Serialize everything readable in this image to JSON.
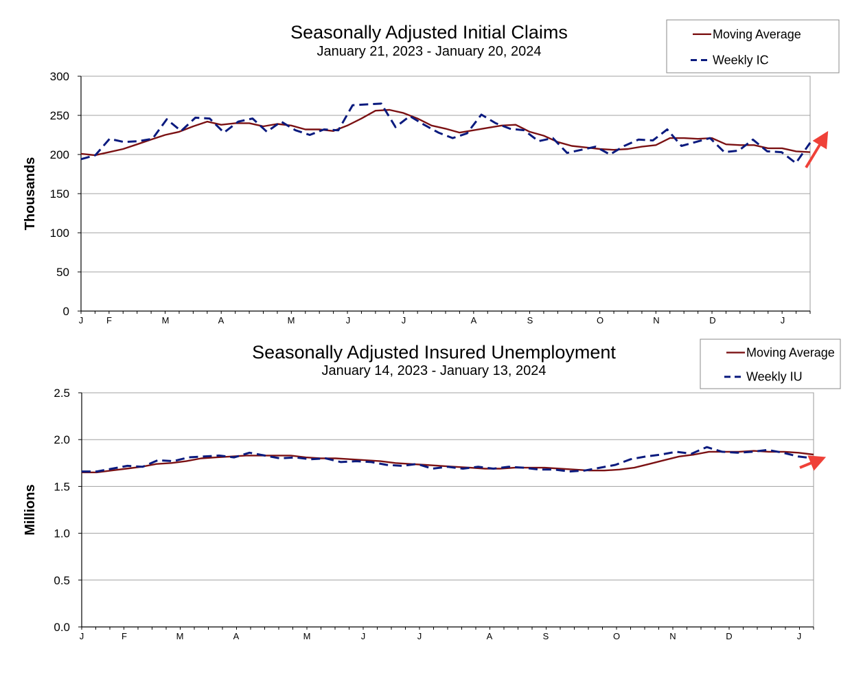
{
  "colors": {
    "moving_average": "#7b1113",
    "weekly": "#0a1a7e",
    "arrow": "#ef4138",
    "grid": "#a0a0a0"
  },
  "chart_data": [
    {
      "type": "line",
      "title": "Seasonally Adjusted Initial Claims",
      "subtitle": "January 21, 2023 - January 20, 2024",
      "ylabel": "Thousands",
      "xlabel": "",
      "ylim": [
        0,
        300
      ],
      "yticks": [
        "0",
        "50",
        "100",
        "150",
        "200",
        "250",
        "300"
      ],
      "month_labels": [
        "J",
        "F",
        "M",
        "A",
        "M",
        "J",
        "J",
        "A",
        "S",
        "O",
        "N",
        "D",
        "J"
      ],
      "legend_position": "top-right",
      "grid": true,
      "series": [
        {
          "name": "Moving Average",
          "style": "solid",
          "values": [
            201,
            199,
            203,
            207,
            213,
            219,
            225,
            229,
            236,
            242,
            238,
            240,
            240,
            236,
            239,
            237,
            232,
            232,
            230,
            237,
            246,
            256,
            257,
            253,
            246,
            237,
            233,
            228,
            231,
            234,
            237,
            238,
            229,
            224,
            216,
            211,
            209,
            207,
            206,
            207,
            210,
            212,
            221,
            221,
            220,
            221,
            213,
            212,
            212,
            208,
            208,
            204,
            203
          ]
        },
        {
          "name": "Weekly IC",
          "style": "dashed",
          "values": [
            194,
            199,
            220,
            216,
            217,
            220,
            245,
            230,
            247,
            246,
            228,
            242,
            246,
            229,
            242,
            231,
            225,
            232,
            231,
            263,
            264,
            265,
            235,
            249,
            238,
            228,
            221,
            227,
            251,
            240,
            233,
            231,
            217,
            221,
            202,
            206,
            210,
            200,
            211,
            219,
            218,
            232,
            211,
            216,
            221,
            203,
            205,
            219,
            204,
            203,
            189,
            215
          ]
        }
      ]
    },
    {
      "type": "line",
      "title": "Seasonally Adjusted Insured Unemployment",
      "subtitle": "January 14, 2023 - January 13, 2024",
      "ylabel": "Millions",
      "xlabel": "",
      "ylim": [
        0,
        2.5
      ],
      "yticks": [
        "0.0",
        "0.5",
        "1.0",
        "1.5",
        "2.0",
        "2.5"
      ],
      "month_labels": [
        "J",
        "F",
        "M",
        "A",
        "M",
        "J",
        "J",
        "A",
        "S",
        "O",
        "N",
        "D",
        "J"
      ],
      "legend_position": "top-right",
      "grid": true,
      "series": [
        {
          "name": "Moving Average",
          "style": "solid",
          "values": [
            1.65,
            1.65,
            1.67,
            1.69,
            1.71,
            1.74,
            1.75,
            1.77,
            1.8,
            1.81,
            1.82,
            1.83,
            1.83,
            1.83,
            1.83,
            1.81,
            1.8,
            1.8,
            1.79,
            1.78,
            1.77,
            1.75,
            1.74,
            1.73,
            1.72,
            1.71,
            1.7,
            1.69,
            1.69,
            1.7,
            1.7,
            1.7,
            1.69,
            1.68,
            1.67,
            1.67,
            1.68,
            1.7,
            1.74,
            1.78,
            1.82,
            1.84,
            1.87,
            1.87,
            1.87,
            1.88,
            1.87,
            1.87,
            1.86,
            1.84
          ]
        },
        {
          "name": "Weekly IU",
          "style": "dashed",
          "values": [
            1.66,
            1.66,
            1.69,
            1.72,
            1.71,
            1.78,
            1.77,
            1.81,
            1.82,
            1.83,
            1.81,
            1.86,
            1.83,
            1.8,
            1.81,
            1.79,
            1.8,
            1.76,
            1.77,
            1.76,
            1.73,
            1.72,
            1.74,
            1.69,
            1.71,
            1.69,
            1.71,
            1.69,
            1.71,
            1.7,
            1.68,
            1.68,
            1.66,
            1.67,
            1.7,
            1.73,
            1.79,
            1.82,
            1.84,
            1.87,
            1.85,
            1.92,
            1.87,
            1.86,
            1.87,
            1.89,
            1.86,
            1.82,
            1.8
          ]
        }
      ]
    }
  ]
}
